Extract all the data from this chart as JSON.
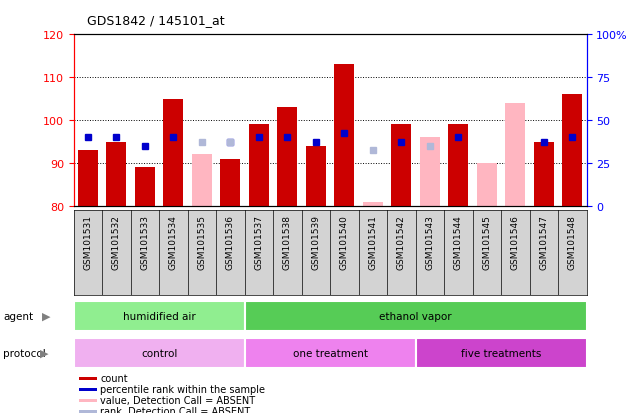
{
  "title": "GDS1842 / 145101_at",
  "samples": [
    "GSM101531",
    "GSM101532",
    "GSM101533",
    "GSM101534",
    "GSM101535",
    "GSM101536",
    "GSM101537",
    "GSM101538",
    "GSM101539",
    "GSM101540",
    "GSM101541",
    "GSM101542",
    "GSM101543",
    "GSM101544",
    "GSM101545",
    "GSM101546",
    "GSM101547",
    "GSM101548"
  ],
  "count_values": [
    93,
    95,
    89,
    105,
    null,
    91,
    99,
    103,
    94,
    113,
    null,
    99,
    null,
    99,
    null,
    null,
    95,
    106
  ],
  "rank_values": [
    96,
    96,
    94,
    96,
    null,
    95,
    96,
    96,
    95,
    97,
    null,
    95,
    null,
    96,
    null,
    null,
    95,
    96
  ],
  "absent_value_values": [
    null,
    null,
    null,
    null,
    92,
    null,
    null,
    null,
    null,
    null,
    81,
    null,
    96,
    null,
    90,
    104,
    null,
    null
  ],
  "absent_rank_values": [
    null,
    null,
    null,
    null,
    95,
    95,
    null,
    null,
    null,
    null,
    93,
    null,
    94,
    null,
    null,
    null,
    null,
    null
  ],
  "ymin": 80,
  "ymax": 120,
  "yticks_left": [
    80,
    90,
    100,
    110,
    120
  ],
  "yticks_right_vals": [
    0,
    25,
    50,
    75,
    100
  ],
  "yticks_right_labels": [
    "0",
    "25",
    "50",
    "75",
    "100%"
  ],
  "bar_bottom": 80,
  "color_count": "#cc0000",
  "color_rank": "#0000cc",
  "color_absent_value": "#ffb6c1",
  "color_absent_rank": "#b0b8d8",
  "bar_width": 0.35,
  "plot_bg": "#ffffff",
  "xticklabel_bg": "#d3d3d3",
  "agent_humidified_color": "#90ee90",
  "agent_ethanol_color": "#56cc56",
  "protocol_control_color": "#f0b0f0",
  "protocol_one_color": "#ee82ee",
  "protocol_five_color": "#cc44cc",
  "legend_items": [
    {
      "label": "count",
      "color": "#cc0000"
    },
    {
      "label": "percentile rank within the sample",
      "color": "#0000cc"
    },
    {
      "label": "value, Detection Call = ABSENT",
      "color": "#ffb6c1"
    },
    {
      "label": "rank, Detection Call = ABSENT",
      "color": "#b0b8d8"
    }
  ]
}
